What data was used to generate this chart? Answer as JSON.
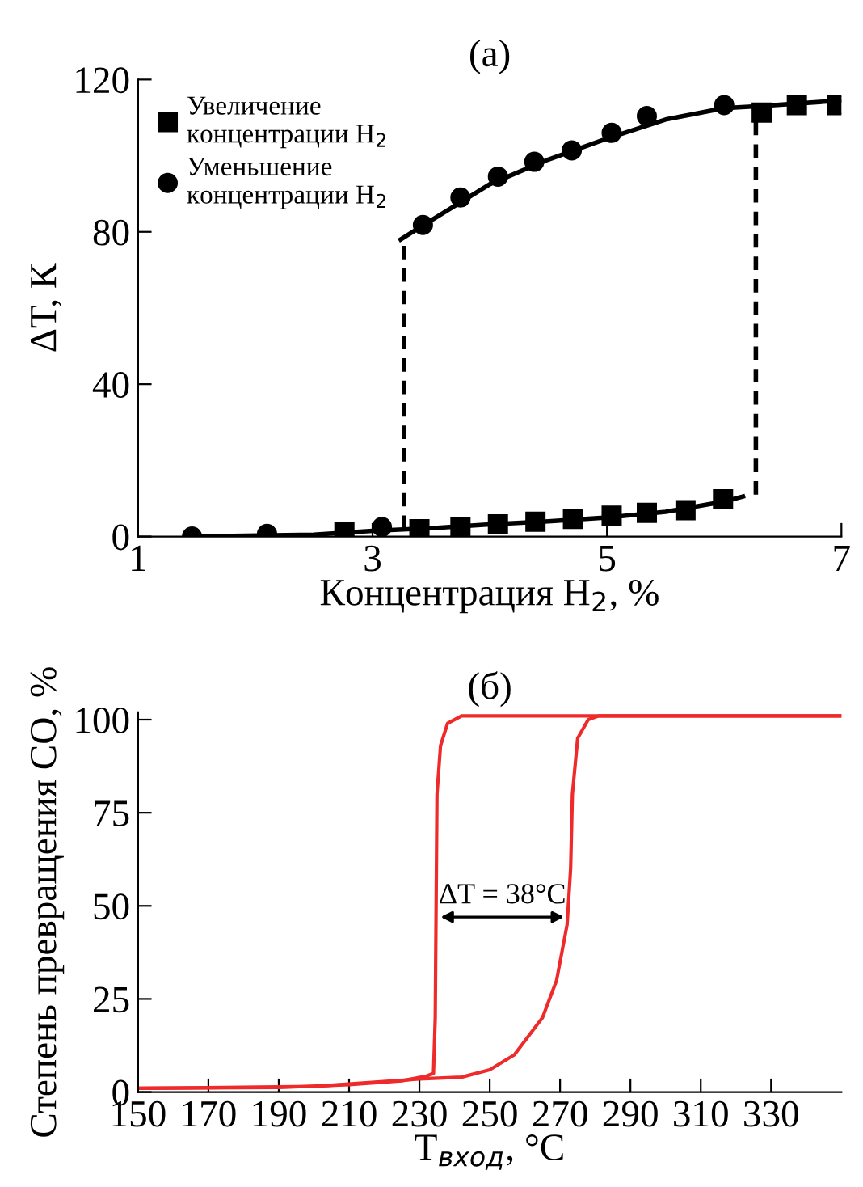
{
  "chart_data": [
    {
      "type": "scatter",
      "title": "(a)",
      "xlabel": "Концентрация H$_{2}$, %",
      "ylabel": "ΔT, К",
      "xlim": [
        1,
        7
      ],
      "ylim": [
        0,
        120
      ],
      "xticks": [
        1,
        3,
        5,
        7
      ],
      "yticks": [
        0,
        40,
        80,
        120
      ],
      "grid": false,
      "legend": "top left",
      "series": [
        {
          "name": "Увеличение концентрации H$_{2}$",
          "color": "#000000",
          "marker": "square",
          "x": [
            2.76,
            3.4,
            3.75,
            4.07,
            4.39,
            4.71,
            5.04,
            5.34,
            5.67,
            5.99,
            6.32,
            6.62,
            6.96
          ],
          "values": [
            1.2,
            1.9,
            2.5,
            3.2,
            3.9,
            4.6,
            5.5,
            6.2,
            6.9,
            9.8,
            111.3,
            113.3,
            113.3
          ]
        },
        {
          "name": "Уменьшение концентрации H$_{2}$",
          "color": "#000000",
          "marker": "circle",
          "x": [
            1.46,
            2.1,
            3.08,
            3.43,
            3.75,
            4.07,
            4.38,
            4.7,
            5.04,
            5.34,
            6.0
          ],
          "values": [
            0,
            0.7,
            2.5,
            81.8,
            89,
            94.5,
            98.4,
            101.4,
            106,
            110.4,
            113.3
          ]
        },
        {
          "type": "line",
          "color": "#000000",
          "line_style": "solid",
          "x": [
            1.46,
            2.5,
            3.0,
            3.5,
            4.0,
            4.5,
            5.0,
            5.5,
            6.0,
            6.16
          ],
          "values": [
            0,
            0.5,
            1.5,
            2.2,
            3.2,
            4,
            5,
            6.5,
            9.2,
            10.5
          ]
        },
        {
          "type": "line",
          "color": "#000000",
          "line_style": "solid",
          "x": [
            3.24,
            3.5,
            4.0,
            4.5,
            5.0,
            5.5,
            6.0,
            6.3,
            7.0
          ],
          "values": [
            78,
            83,
            92.5,
            99,
            104.5,
            109.5,
            112.5,
            113,
            114.5
          ]
        },
        {
          "type": "line",
          "color": "#000000",
          "line_style": "dashed",
          "x": [
            3.27,
            3.27
          ],
          "values": [
            2,
            78
          ]
        },
        {
          "type": "line",
          "color": "#000000",
          "line_style": "dashed",
          "x": [
            6.27,
            6.27
          ],
          "values": [
            11,
            112
          ]
        }
      ]
    },
    {
      "type": "line",
      "title": "(б)",
      "xlabel": "T$_{вход}$, °C",
      "ylabel": "Степень превращения CO, %",
      "xlim": [
        150,
        350
      ],
      "ylim": [
        0,
        102
      ],
      "xticks": [
        150,
        170,
        190,
        210,
        230,
        250,
        270,
        290,
        310,
        330
      ],
      "yticks": [
        0,
        25,
        50,
        75,
        100
      ],
      "grid": false,
      "legend": false,
      "marker": "none",
      "line_style": "solid",
      "annotations": [
        "ΔT = 38°C"
      ],
      "series": [
        {
          "color": "#ee2a2a",
          "x": [
            150,
            190,
            210,
            225,
            232,
            234,
            234.5,
            235,
            236,
            238,
            242,
            350
          ],
          "values": [
            1,
            1.2,
            2,
            3,
            4.3,
            5,
            20,
            80,
            93,
            99,
            101,
            101
          ]
        },
        {
          "color": "#ee2a2a",
          "x": [
            150,
            200,
            230,
            242,
            250,
            257,
            265,
            269,
            272,
            273,
            273.5,
            275,
            278,
            281,
            350
          ],
          "values": [
            1,
            1.5,
            3.5,
            4,
            6,
            10,
            20,
            30,
            45,
            60,
            80,
            95,
            100,
            101,
            101
          ]
        }
      ]
    }
  ]
}
